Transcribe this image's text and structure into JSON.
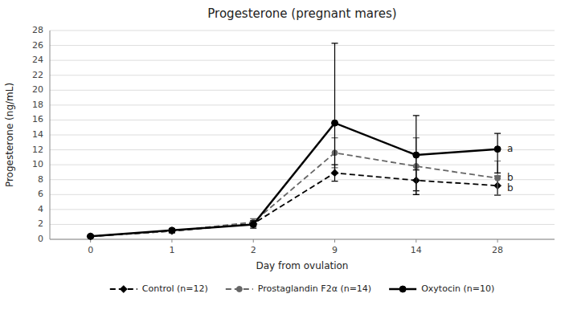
{
  "chart_data": {
    "type": "line",
    "title": "Progesterone (pregnant mares)",
    "x_label": "Day from ovulation",
    "y_label": "Progesterone (ng/mL)",
    "categories": [
      "0",
      "1",
      "2",
      "9",
      "14",
      "28"
    ],
    "ylim": [
      0,
      28
    ],
    "yticks": [
      0,
      2,
      4,
      6,
      8,
      10,
      12,
      14,
      16,
      18,
      20,
      22,
      24,
      26,
      28
    ],
    "grid": true,
    "legend": "bottom",
    "series": [
      {
        "name": "Control (n=12)",
        "color": "#000000",
        "marker": "diamond",
        "line_style": "dashed",
        "values": [
          0.4,
          1.1,
          2.1,
          8.9,
          7.9,
          7.2
        ],
        "error_low": [
          0.15,
          0.25,
          0.35,
          1.1,
          1.4,
          1.3
        ],
        "error_high": [
          0.15,
          0.25,
          0.35,
          1.1,
          1.4,
          1.3
        ]
      },
      {
        "name": "Prostaglandin F2α (n=14)",
        "color": "#666666",
        "marker": "circle",
        "line_style": "dashed",
        "values": [
          0.4,
          1.1,
          2.3,
          11.6,
          9.8,
          8.2
        ],
        "error_low": [
          0.15,
          0.25,
          0.45,
          2.0,
          3.8,
          2.3
        ],
        "error_high": [
          0.15,
          0.25,
          0.45,
          2.0,
          3.8,
          2.3
        ]
      },
      {
        "name": "Oxytocin (n=10)",
        "color": "#000000",
        "marker": "circle",
        "line_style": "solid",
        "values": [
          0.4,
          1.2,
          2.0,
          15.6,
          11.3,
          12.1
        ],
        "error_low": [
          0.15,
          0.25,
          0.5,
          6.8,
          5.3,
          3.2
        ],
        "error_high": [
          0.15,
          0.25,
          0.5,
          10.7,
          5.3,
          2.1
        ]
      }
    ],
    "annotations": [
      {
        "text": "a",
        "x": "28",
        "y": 12.1
      },
      {
        "text": "b",
        "x": "28",
        "y": 8.2
      },
      {
        "text": "b",
        "x": "28",
        "y": 7.2
      }
    ]
  }
}
